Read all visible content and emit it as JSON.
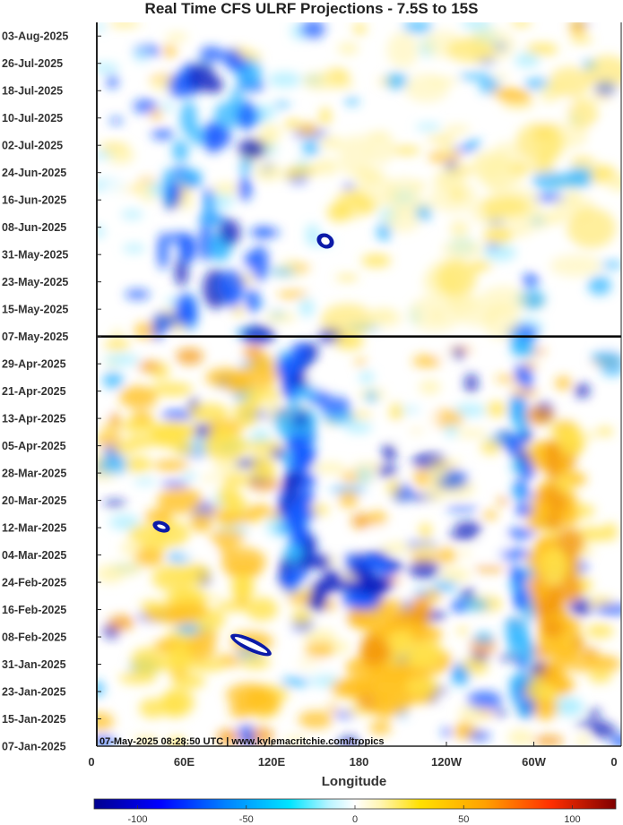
{
  "chart_data": {
    "type": "heatmap",
    "title": "Real Time CFS ULRF Projections - 7.5S to 15S",
    "xlabel": "Longitude",
    "ylabel": "",
    "x_tick_labels": [
      "0",
      "60E",
      "120E",
      "180",
      "120W",
      "60W",
      "0"
    ],
    "x_tick_values_deg": [
      0,
      60,
      120,
      180,
      240,
      300,
      360
    ],
    "xlim": [
      0,
      360
    ],
    "y_tick_labels": [
      "03-Aug-2025",
      "26-Jul-2025",
      "18-Jul-2025",
      "10-Jul-2025",
      "02-Jul-2025",
      "24-Jun-2025",
      "16-Jun-2025",
      "08-Jun-2025",
      "31-May-2025",
      "23-May-2025",
      "15-May-2025",
      "07-May-2025",
      "29-Apr-2025",
      "21-Apr-2025",
      "13-Apr-2025",
      "05-Apr-2025",
      "28-Mar-2025",
      "20-Mar-2025",
      "12-Mar-2025",
      "04-Mar-2025",
      "24-Feb-2025",
      "16-Feb-2025",
      "08-Feb-2025",
      "31-Jan-2025",
      "23-Jan-2025",
      "15-Jan-2025",
      "07-Jan-2025"
    ],
    "ylim": [
      "07-Jan-2025",
      "07-Aug-2025"
    ],
    "divider_date": "07-May-2025",
    "colorbar": {
      "min": -120,
      "max": 120,
      "tick_labels": [
        "-100",
        "-50",
        "0",
        "50",
        "100"
      ],
      "tick_values": [
        -100,
        -50,
        0,
        50,
        100
      ]
    },
    "annotation": "07-May-2025 08:28:50 UTC | www.kylemacritchie.com/tropics"
  }
}
